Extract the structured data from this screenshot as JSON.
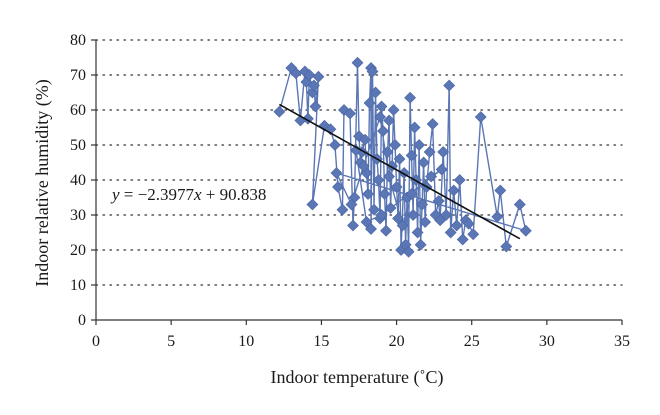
{
  "chart_data": {
    "type": "scatter",
    "xlabel": "Indoor temperature (˚C)",
    "ylabel": "Indoor relative humidity (%)",
    "xlim": [
      0,
      35
    ],
    "ylim": [
      0,
      80
    ],
    "xticks": [
      0,
      5,
      10,
      15,
      20,
      25,
      30,
      35
    ],
    "yticks": [
      0,
      10,
      20,
      30,
      40,
      50,
      60,
      70,
      80
    ],
    "grid": "horizontal-dotted",
    "series_color": "#5a76b5",
    "marker": "diamond",
    "trendline": {
      "slope": -2.3977,
      "intercept": 90.838,
      "x_range": [
        12.2,
        28.2
      ],
      "label": "y = −2.3977x + 90.838"
    },
    "points": [
      [
        12.2,
        59.5
      ],
      [
        13.0,
        72.0
      ],
      [
        13.3,
        70.5
      ],
      [
        13.6,
        57.0
      ],
      [
        13.9,
        71.0
      ],
      [
        14.0,
        68.0
      ],
      [
        14.1,
        57.5
      ],
      [
        14.2,
        70.0
      ],
      [
        14.4,
        65.0
      ],
      [
        14.5,
        67.0
      ],
      [
        14.6,
        61.0
      ],
      [
        14.8,
        69.5
      ],
      [
        14.4,
        33.0
      ],
      [
        15.2,
        55.5
      ],
      [
        15.6,
        54.5
      ],
      [
        15.9,
        50.0
      ],
      [
        16.1,
        38.0
      ],
      [
        16.4,
        31.5
      ],
      [
        16.5,
        60.0
      ],
      [
        16.9,
        59.0
      ],
      [
        17.1,
        27.0
      ],
      [
        17.2,
        35.0
      ],
      [
        17.4,
        73.5
      ],
      [
        17.5,
        52.5
      ],
      [
        17.6,
        45.0
      ],
      [
        17.7,
        48.0
      ],
      [
        17.9,
        51.5
      ],
      [
        18.0,
        42.0
      ],
      [
        18.1,
        36.0
      ],
      [
        18.2,
        62.0
      ],
      [
        18.3,
        72.0
      ],
      [
        18.3,
        26.0
      ],
      [
        18.4,
        71.0
      ],
      [
        18.5,
        31.5
      ],
      [
        18.6,
        65.0
      ],
      [
        18.7,
        46.0
      ],
      [
        18.8,
        40.0
      ],
      [
        18.9,
        29.0
      ],
      [
        19.0,
        61.0
      ],
      [
        19.1,
        54.0
      ],
      [
        19.2,
        36.0
      ],
      [
        19.3,
        25.5
      ],
      [
        19.4,
        48.0
      ],
      [
        19.5,
        57.0
      ],
      [
        19.6,
        32.0
      ],
      [
        19.7,
        44.0
      ],
      [
        19.8,
        60.0
      ],
      [
        19.9,
        50.0
      ],
      [
        20.0,
        38.0
      ],
      [
        20.1,
        29.0
      ],
      [
        20.2,
        46.0
      ],
      [
        20.3,
        20.0
      ],
      [
        20.5,
        42.0
      ],
      [
        20.6,
        21.5
      ],
      [
        20.7,
        35.0
      ],
      [
        20.8,
        19.5
      ],
      [
        20.9,
        63.5
      ],
      [
        21.0,
        47.0
      ],
      [
        21.1,
        30.0
      ],
      [
        21.2,
        55.0
      ],
      [
        21.3,
        40.0
      ],
      [
        21.4,
        25.0
      ],
      [
        21.5,
        50.0
      ],
      [
        21.6,
        21.5
      ],
      [
        21.7,
        33.0
      ],
      [
        21.8,
        45.0
      ],
      [
        21.9,
        28.0
      ],
      [
        22.0,
        38.0
      ],
      [
        22.2,
        48.0
      ],
      [
        22.4,
        56.0
      ],
      [
        22.6,
        30.0
      ],
      [
        22.8,
        34.0
      ],
      [
        22.9,
        28.5
      ],
      [
        23.1,
        48.0
      ],
      [
        23.3,
        30.0
      ],
      [
        23.5,
        67.0
      ],
      [
        23.6,
        25.0
      ],
      [
        23.8,
        37.0
      ],
      [
        24.0,
        27.0
      ],
      [
        24.2,
        40.0
      ],
      [
        24.4,
        23.0
      ],
      [
        24.6,
        28.5
      ],
      [
        24.8,
        27.5
      ],
      [
        25.1,
        24.5
      ],
      [
        25.6,
        58.0
      ],
      [
        26.7,
        29.5
      ],
      [
        26.9,
        37.0
      ],
      [
        27.3,
        21.0
      ],
      [
        28.2,
        33.0
      ],
      [
        28.6,
        25.5
      ],
      [
        16.0,
        42.0
      ],
      [
        17.0,
        33.0
      ],
      [
        17.8,
        44.0
      ],
      [
        18.9,
        58.0
      ],
      [
        19.5,
        41.0
      ],
      [
        20.4,
        27.0
      ],
      [
        21.0,
        36.0
      ],
      [
        22.3,
        41.0
      ],
      [
        23.0,
        43.0
      ],
      [
        19.0,
        30.0
      ],
      [
        18.0,
        28.0
      ],
      [
        17.3,
        48.5
      ]
    ]
  }
}
